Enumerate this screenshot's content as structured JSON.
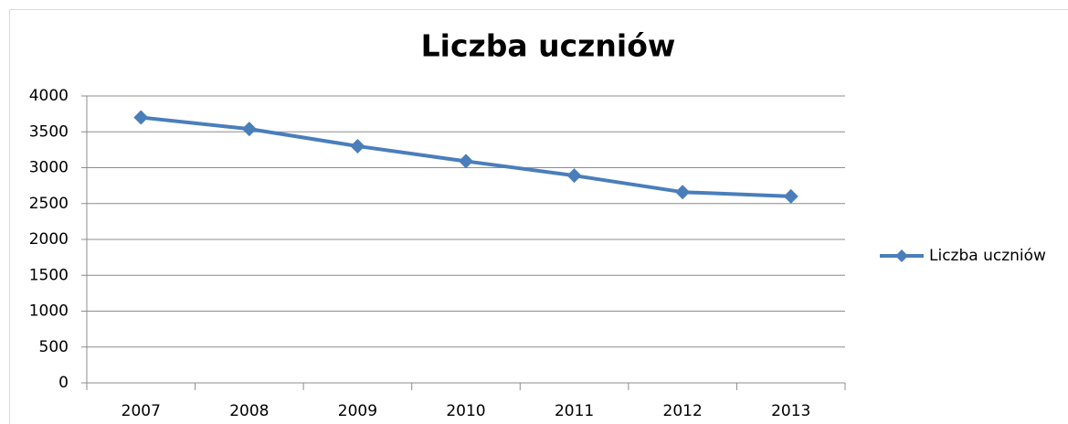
{
  "chart_data": {
    "type": "line",
    "title": "Liczba uczniów",
    "categories": [
      "2007",
      "2008",
      "2009",
      "2010",
      "2011",
      "2012",
      "2013"
    ],
    "series": [
      {
        "name": "Liczba uczniów",
        "color": "#4a7ebb",
        "values": [
          3700,
          3540,
          3300,
          3090,
          2890,
          2660,
          2600
        ]
      }
    ],
    "ylim": [
      0,
      4000
    ],
    "yticks": [
      0,
      500,
      1000,
      1500,
      2000,
      2500,
      3000,
      3500,
      4000
    ],
    "grid": true,
    "legend": "right",
    "marker": "diamond"
  }
}
